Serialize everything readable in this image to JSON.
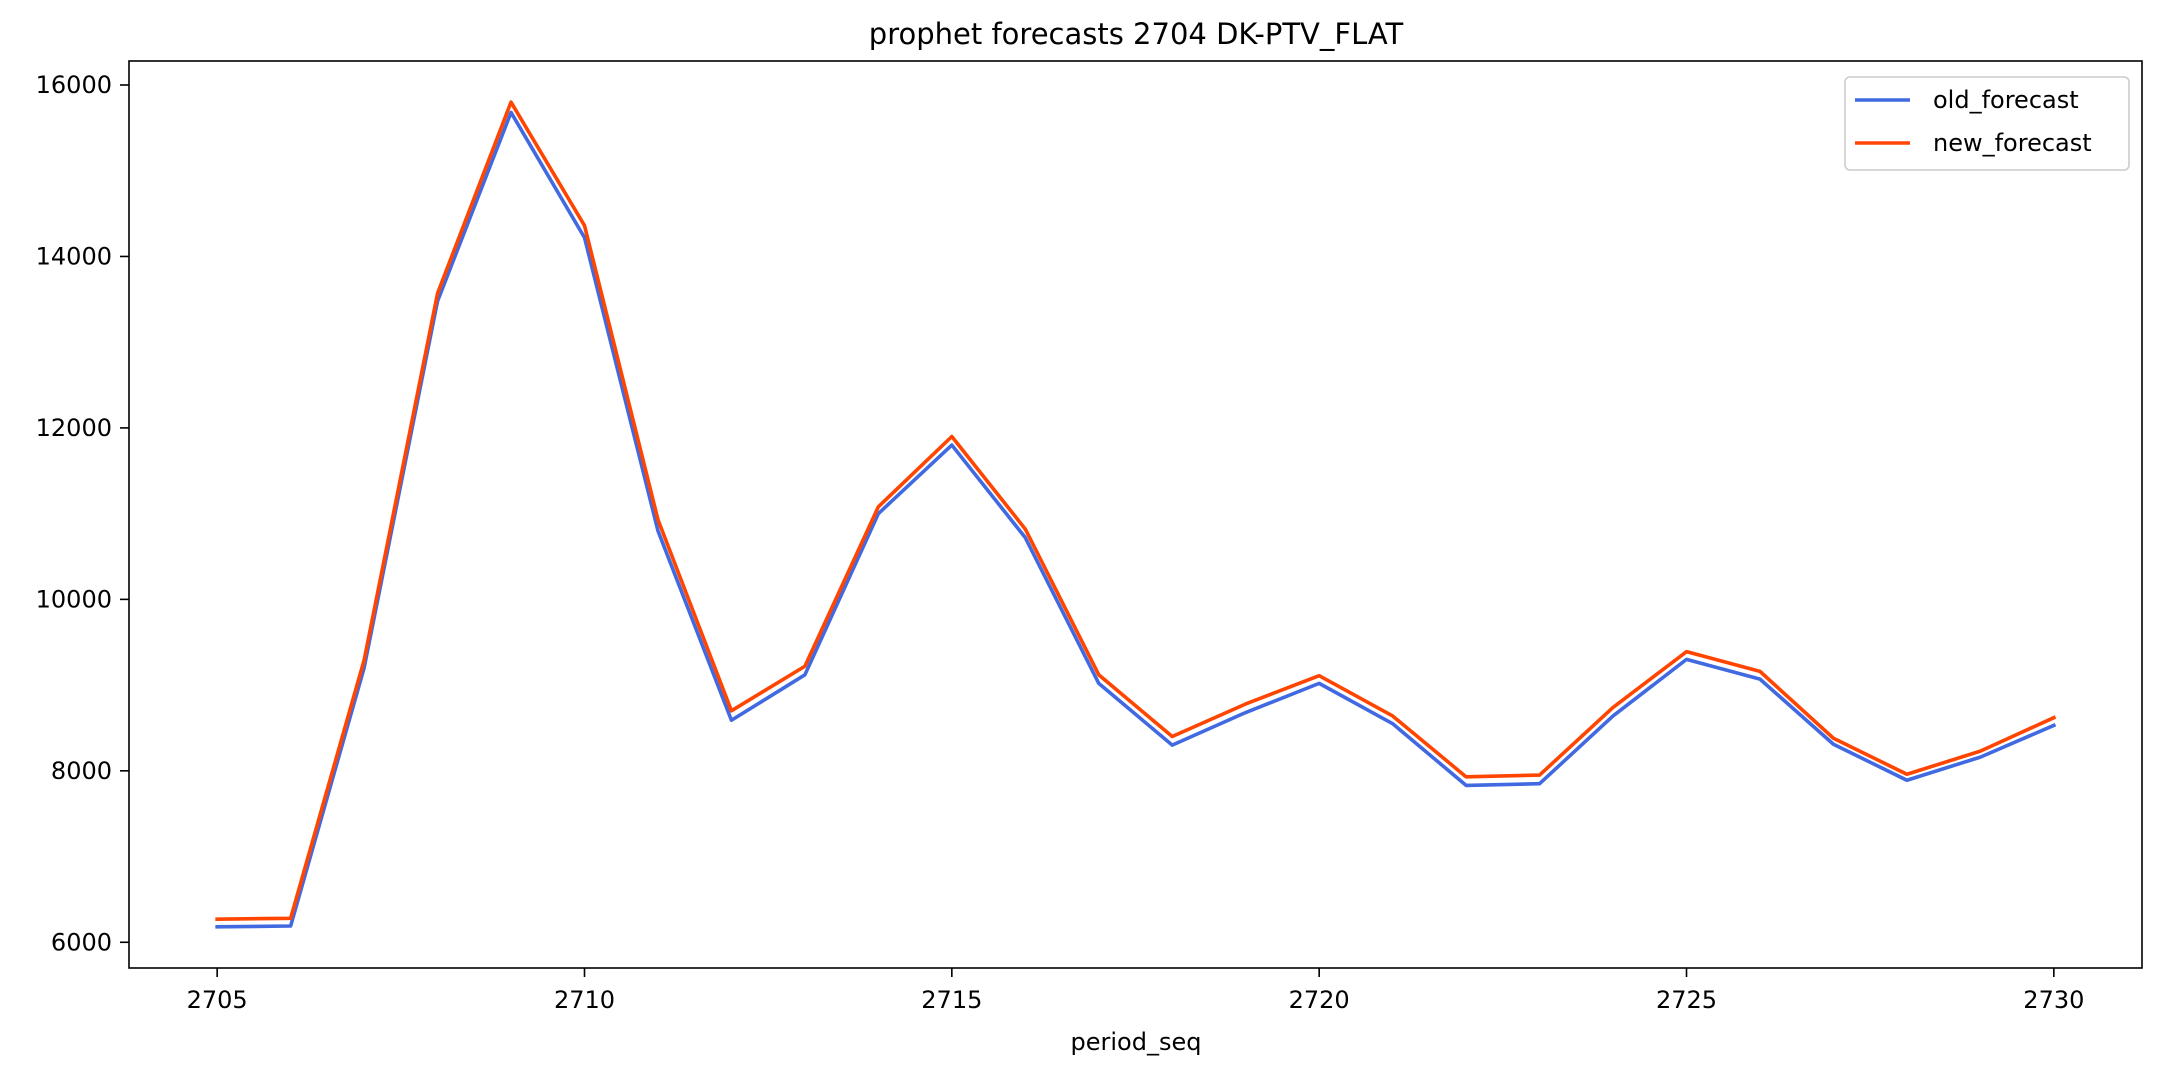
{
  "chart_data": {
    "type": "line",
    "title": "prophet forecasts 2704 DK-PTV_FLAT",
    "xlabel": "period_seq",
    "ylabel": "",
    "x": [
      2705,
      2706,
      2707,
      2708,
      2709,
      2710,
      2711,
      2712,
      2713,
      2714,
      2715,
      2716,
      2717,
      2718,
      2719,
      2720,
      2721,
      2722,
      2723,
      2724,
      2725,
      2726,
      2727,
      2728,
      2729,
      2730
    ],
    "xlim": [
      2703.8,
      2731.2
    ],
    "ylim": [
      5700,
      16280
    ],
    "xticks": [
      2705,
      2710,
      2715,
      2720,
      2725,
      2730
    ],
    "yticks": [
      6000,
      8000,
      10000,
      12000,
      14000,
      16000
    ],
    "grid": false,
    "legend_position": "top-right",
    "series": [
      {
        "name": "old_forecast",
        "color": "#4169e1",
        "values": [
          6180,
          6190,
          9200,
          13480,
          15680,
          14220,
          10800,
          8590,
          9120,
          11000,
          11800,
          10720,
          9020,
          8300,
          8680,
          9020,
          8550,
          7830,
          7850,
          8640,
          9300,
          9070,
          8310,
          7890,
          8160,
          8530
        ]
      },
      {
        "name": "new_forecast",
        "color": "#ff4500",
        "values": [
          6270,
          6280,
          9290,
          13570,
          15800,
          14360,
          10930,
          8700,
          9220,
          11080,
          11900,
          10820,
          9120,
          8400,
          8780,
          9110,
          8640,
          7930,
          7950,
          8740,
          9390,
          9160,
          8380,
          7960,
          8230,
          8620
        ]
      }
    ]
  }
}
